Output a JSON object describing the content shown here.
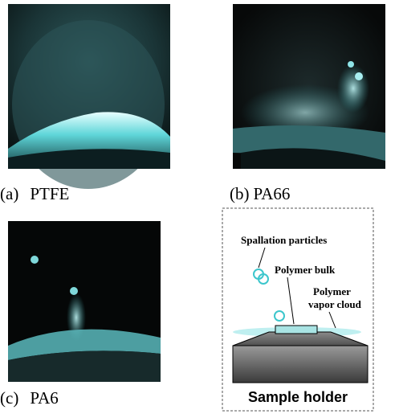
{
  "panels": [
    {
      "label": "(a)",
      "name": "PTFE"
    },
    {
      "label": "(b)",
      "name": "PA66"
    },
    {
      "label": "(c)",
      "name": "PA6"
    }
  ],
  "diagram": {
    "spallation": "Spallation particles",
    "bulk": "Polymer bulk",
    "vapor": [
      "Polymer",
      "vapor cloud"
    ],
    "holder": "Sample holder"
  }
}
